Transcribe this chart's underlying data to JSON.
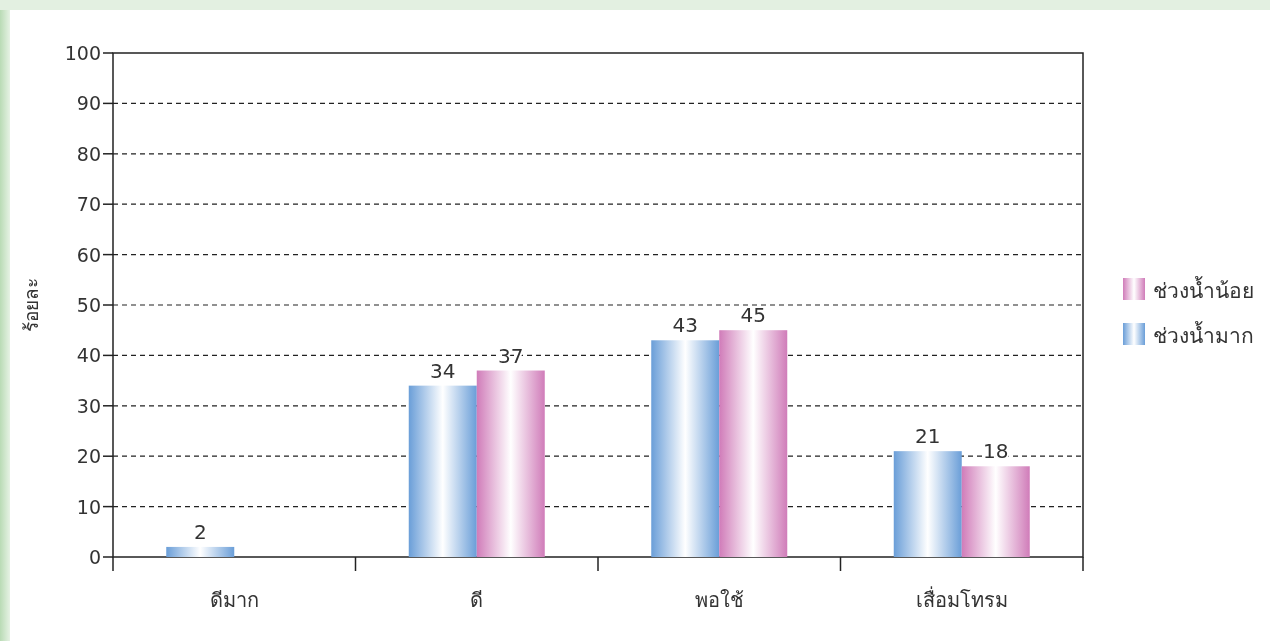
{
  "chart_data": {
    "type": "bar",
    "ylabel": "ร้อยละ",
    "categories": [
      "ดีมาก",
      "ดี",
      "พอใช้",
      "เสื่อมโทรม"
    ],
    "series": [
      {
        "name": "ช่วงน้ำมาก",
        "color": "#6a9ed8",
        "values": [
          2,
          34,
          43,
          21
        ]
      },
      {
        "name": "ช่วงน้ำน้อย",
        "color": "#d07cb9",
        "values": [
          null,
          37,
          45,
          18
        ]
      }
    ],
    "ylim": [
      0,
      100
    ],
    "yticks": [
      0,
      10,
      20,
      30,
      40,
      50,
      60,
      70,
      80,
      90,
      100
    ],
    "grid": "y",
    "legend": "right",
    "data_labels": true
  }
}
